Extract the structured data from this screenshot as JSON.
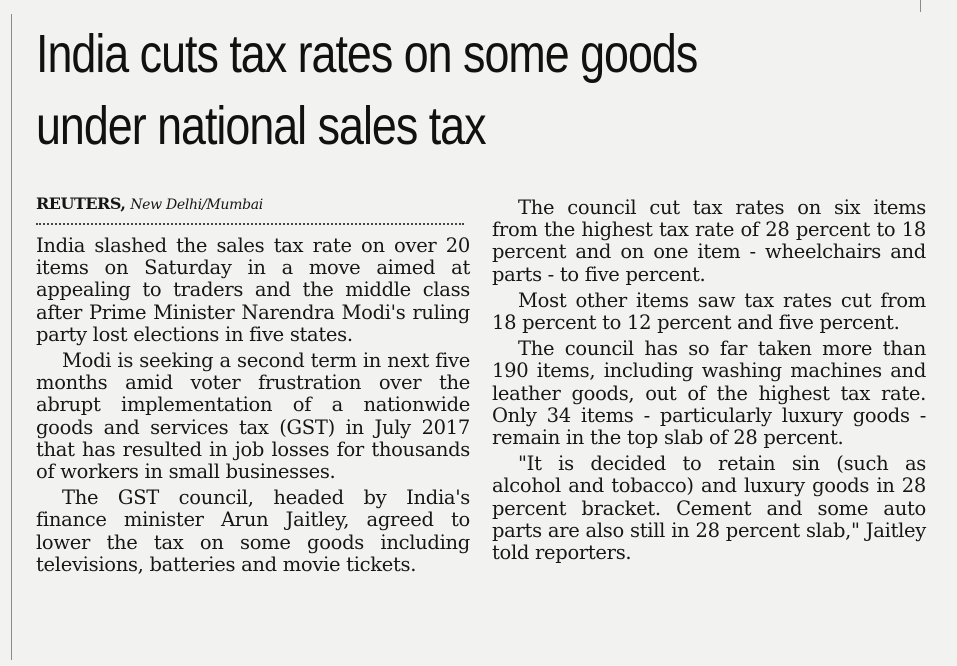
{
  "headline": {
    "line1": "India cuts tax rates on some goods",
    "line2": "under national sales tax"
  },
  "byline": {
    "agency": "REUTERS,",
    "location": "New Delhi/Mumbai"
  },
  "paragraphs_left": [
    "India slashed the sales tax rate on over 20 items on Saturday in a move aimed at appealing to traders and the middle class after Prime Minister Narendra Modi's ruling party lost elections in five states.",
    "Modi is seeking a second term in next five months amid voter frustration over the abrupt implementation of a nationwide goods and services tax (GST) in July 2017 that has resulted in job losses for thousands of workers in small businesses.",
    "The GST council, headed by India's finance minister Arun Jaitley, agreed to lower the tax on some goods including televisions, batteries and movie tickets."
  ],
  "paragraphs_right": [
    "The council cut tax rates on six items from the highest tax rate of 28 percent to 18 percent and on one item - wheelchairs and parts - to five percent.",
    "Most other items saw tax rates cut from 18 percent to 12 percent and five percent.",
    "The council has so far taken more than 190 items, including washing machines and leather goods, out of the highest tax rate. Only 34 items - particularly luxury goods - remain in the top slab of 28 percent.",
    "\"It is decided to retain sin (such as alcohol and tobacco) and luxury goods in 28 percent bracket. Cement and some auto parts are also still in 28 percent slab,\" Jaitley told reporters."
  ]
}
